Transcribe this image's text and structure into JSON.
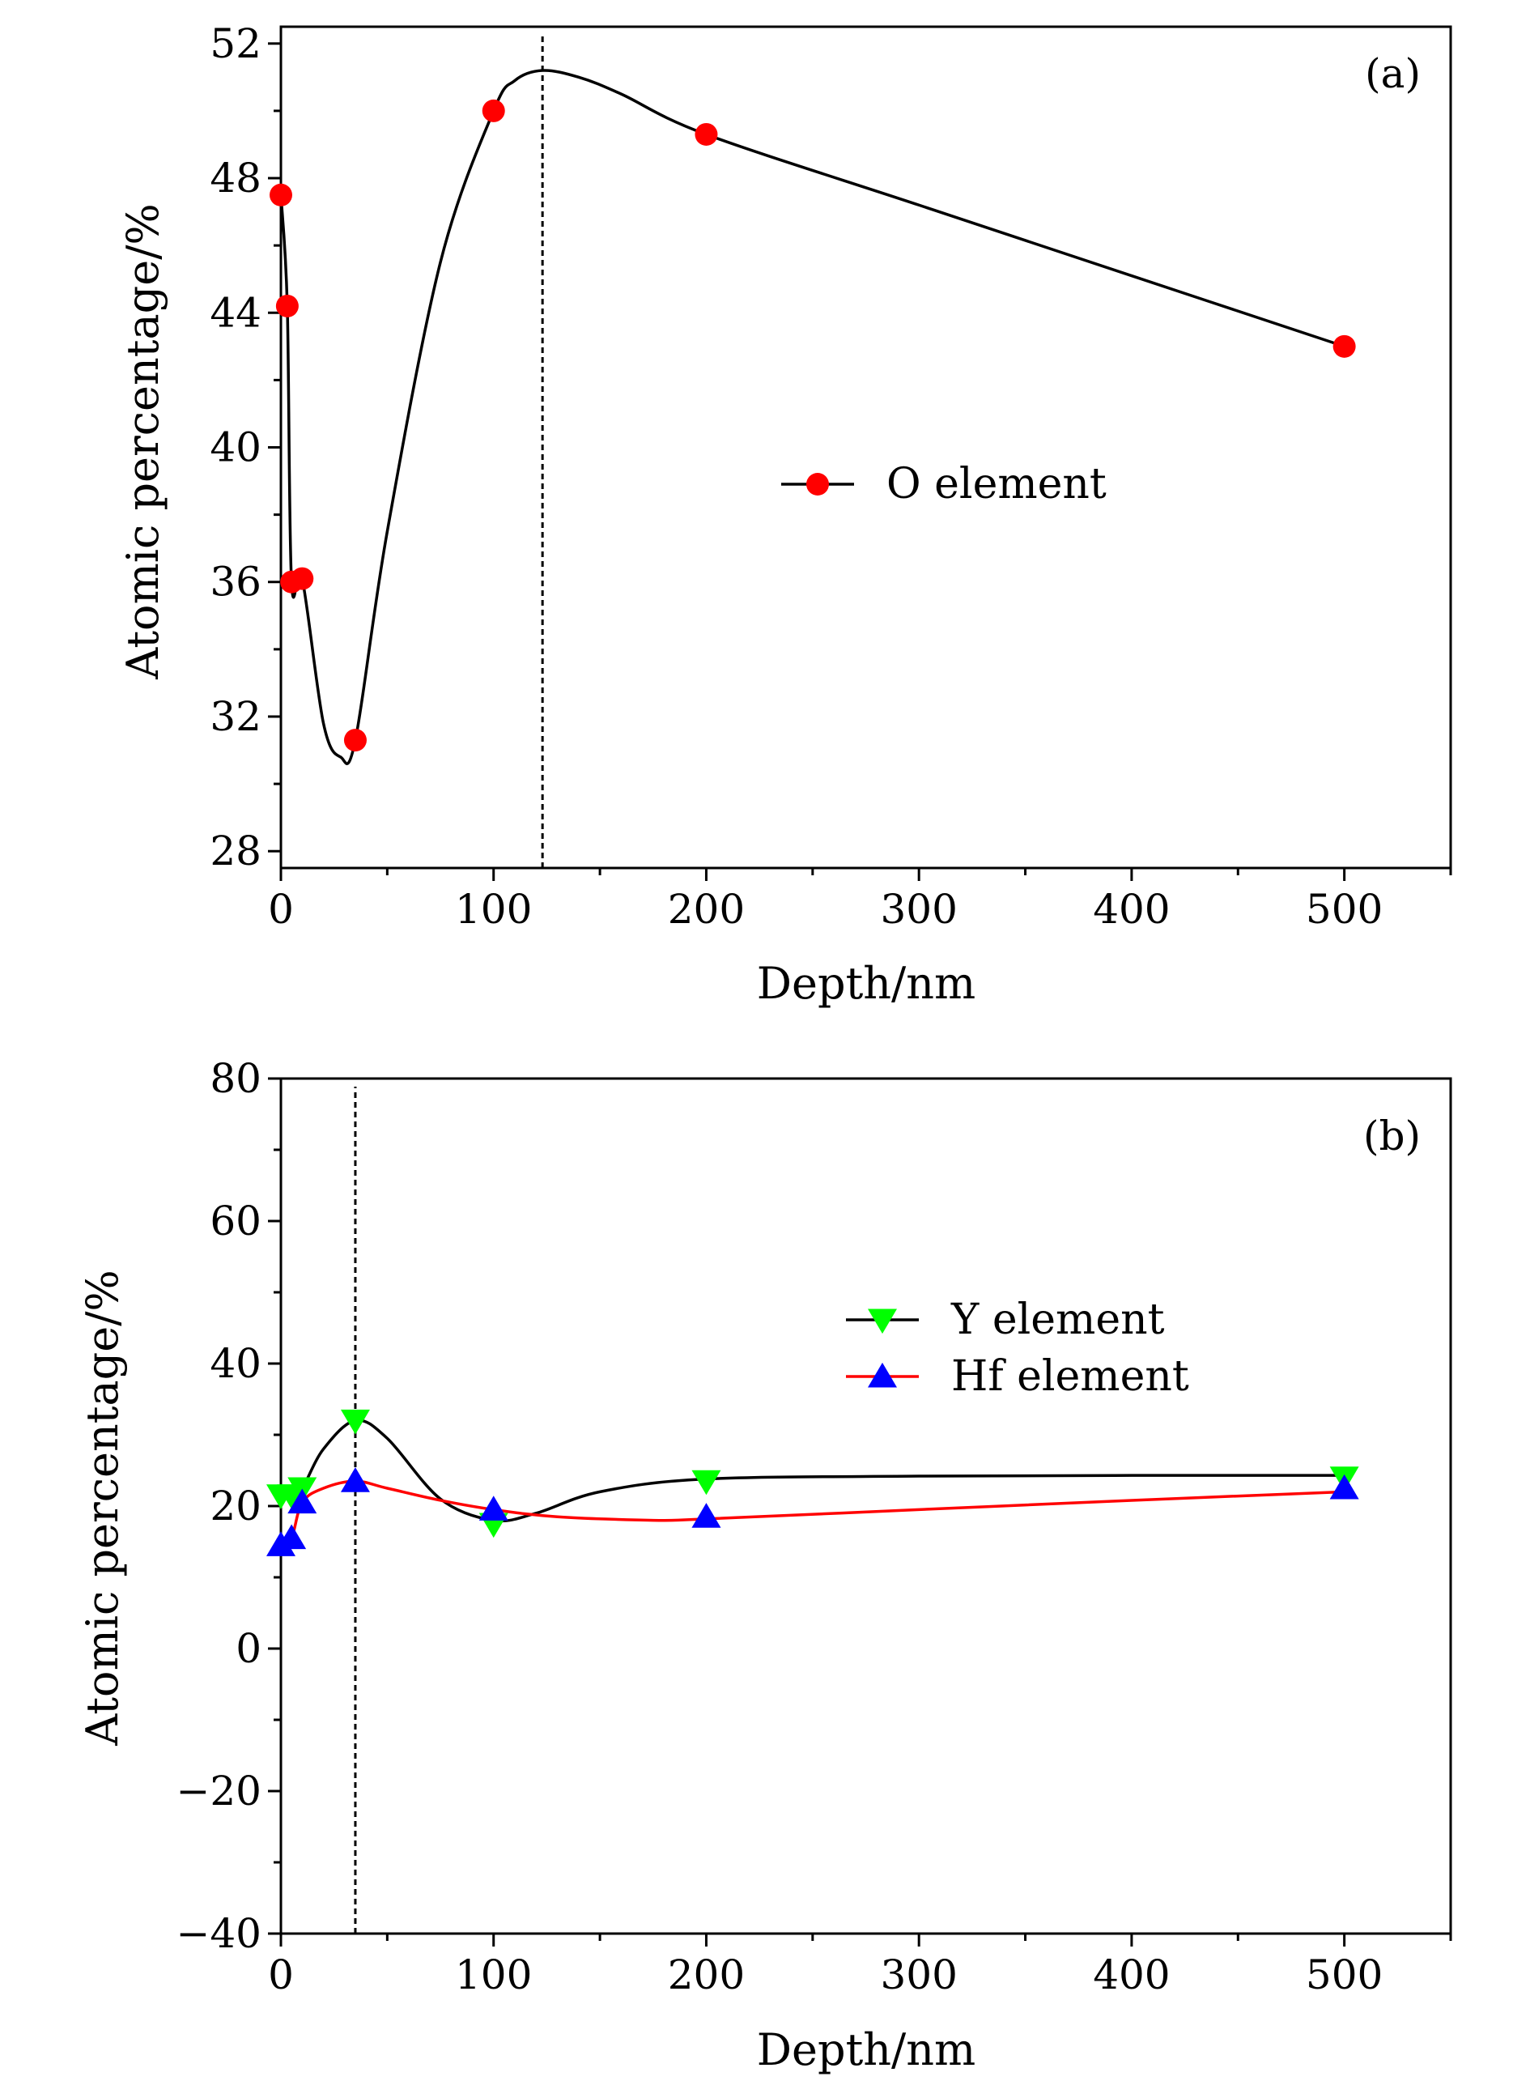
{
  "chart_data": [
    {
      "type": "line",
      "panel_label": "(a)",
      "xlabel": "Depth/nm",
      "ylabel": "Atomic percentage/%",
      "xlim": [
        0,
        550
      ],
      "ylim": [
        27.5,
        52.5
      ],
      "x_ticks": [
        0,
        100,
        200,
        300,
        400,
        500
      ],
      "x_tick_labels": [
        "0",
        "100",
        "200",
        "300",
        "400",
        "500"
      ],
      "y_ticks": [
        28,
        32,
        36,
        40,
        44,
        48,
        52
      ],
      "y_tick_labels": [
        "28",
        "32",
        "36",
        "40",
        "44",
        "48",
        "52"
      ],
      "grid": false,
      "legend_position": "center-right",
      "marker_line": {
        "x": 123
      },
      "series": [
        {
          "name": "O element",
          "marker": "circle",
          "line_color": "#000000",
          "marker_color": "#ff0000",
          "x": [
            0,
            3,
            5,
            10,
            35,
            100,
            200,
            500
          ],
          "y": [
            47.5,
            44.2,
            36.0,
            36.1,
            31.3,
            50.0,
            49.3,
            43.0
          ],
          "curve": {
            "x": [
              0,
              3,
              5,
              10,
              20,
              28,
              35,
              50,
              75,
              100,
              110,
              123,
              140,
              160,
              200,
              300,
              400,
              500
            ],
            "y": [
              47.5,
              44.2,
              36.0,
              36.1,
              31.8,
              30.8,
              31.3,
              37.5,
              45.5,
              50.0,
              50.9,
              51.2,
              51.0,
              50.5,
              49.3,
              47.2,
              45.1,
              43.0
            ]
          }
        }
      ]
    },
    {
      "type": "line",
      "panel_label": "(b)",
      "xlabel": "Depth/nm",
      "ylabel": "Atomic percentage/%",
      "xlim": [
        0,
        550
      ],
      "ylim": [
        -40,
        80
      ],
      "x_ticks": [
        0,
        100,
        200,
        300,
        400,
        500
      ],
      "x_tick_labels": [
        "0",
        "100",
        "200",
        "300",
        "400",
        "500"
      ],
      "y_ticks": [
        -40,
        -20,
        0,
        20,
        40,
        60,
        80
      ],
      "y_tick_labels": [
        "−40",
        "−20",
        "0",
        "20",
        "40",
        "60",
        "80"
      ],
      "grid": false,
      "legend_position": "upper-right",
      "marker_line": {
        "x": 35
      },
      "series": [
        {
          "name": "Y element",
          "marker": "triangle-down",
          "line_color": "#000000",
          "marker_color": "#00ff00",
          "x": [
            0,
            5,
            10,
            35,
            100,
            200,
            500
          ],
          "y": [
            21.5,
            21.5,
            22.5,
            32.0,
            17.5,
            23.5,
            24.0
          ],
          "curve": {
            "x": [
              0,
              5,
              10,
              20,
              35,
              50,
              75,
              100,
              120,
              150,
              200,
              300,
              400,
              500
            ],
            "y": [
              21.5,
              21.5,
              22.5,
              28.0,
              32.0,
              29.5,
              21.0,
              18.0,
              19.0,
              22.0,
              23.8,
              24.2,
              24.3,
              24.3
            ]
          }
        },
        {
          "name": "Hf element",
          "marker": "triangle-up",
          "line_color": "#ff0000",
          "marker_color": "#0000ff",
          "x": [
            0,
            5,
            10,
            35,
            100,
            200,
            500
          ],
          "y": [
            14.5,
            15.5,
            20.5,
            23.5,
            19.5,
            18.5,
            22.5
          ],
          "curve": {
            "x": [
              0,
              5,
              10,
              20,
              35,
              50,
              75,
              100,
              130,
              175,
              200,
              300,
              400,
              500
            ],
            "y": [
              14.5,
              15.5,
              20.5,
              22.5,
              23.5,
              22.5,
              20.8,
              19.5,
              18.5,
              18.0,
              18.2,
              19.5,
              20.8,
              22.0
            ]
          }
        }
      ]
    }
  ]
}
